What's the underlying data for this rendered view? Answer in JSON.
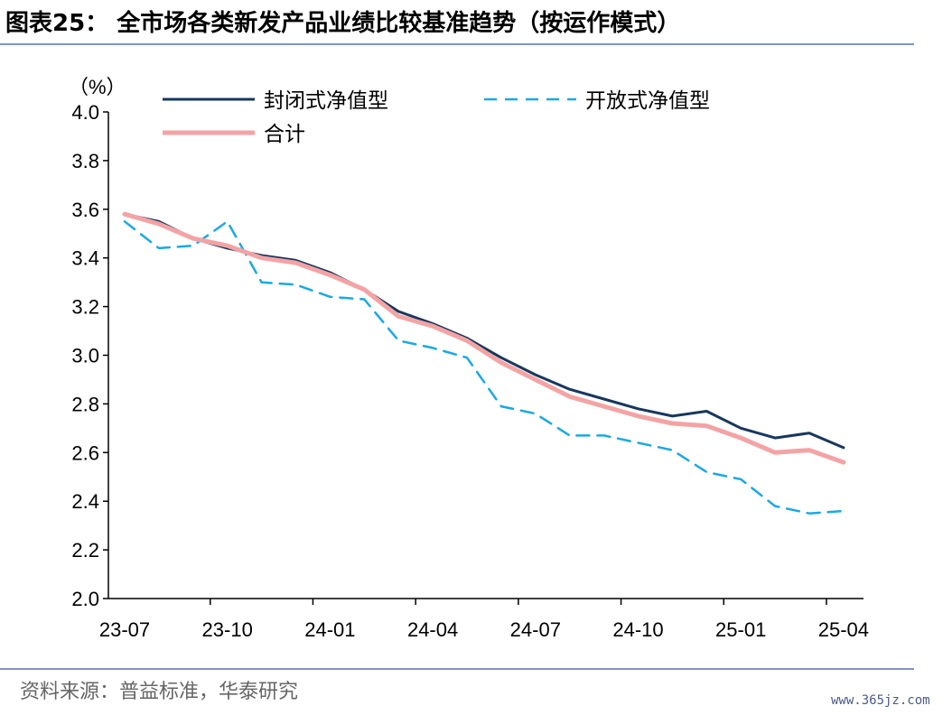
{
  "title": "图表25： 全市场各类新发产品业绩比较基准趋势（按运作模式）",
  "source": "资料来源：普益标准，华泰研究",
  "watermark": "www.365jz.com",
  "colors": {
    "closed": "#17375e",
    "open": "#19a9e6",
    "total": "#f4a3a5",
    "rule": "#7f93c6"
  },
  "chart_data": {
    "type": "line",
    "unit_label": "（%）",
    "ylim": [
      2.0,
      4.0
    ],
    "y_ticks": [
      "2.0",
      "2.2",
      "2.4",
      "2.6",
      "2.8",
      "3.0",
      "3.2",
      "3.4",
      "3.6",
      "3.8",
      "4.0"
    ],
    "x": [
      "23-07",
      "23-08",
      "23-09",
      "23-10",
      "23-11",
      "23-12",
      "24-01",
      "24-02",
      "24-03",
      "24-04",
      "24-05",
      "24-06",
      "24-07",
      "24-08",
      "24-09",
      "24-10",
      "24-11",
      "24-12",
      "25-01",
      "25-02",
      "25-03",
      "25-04"
    ],
    "x_ticks": [
      "23-07",
      "23-10",
      "24-01",
      "24-04",
      "24-07",
      "24-10",
      "25-01",
      "25-04"
    ],
    "legend_position": "top",
    "series": [
      {
        "name": "封闭式净值型",
        "style": "solid",
        "color_key": "closed",
        "values": [
          3.58,
          3.55,
          3.48,
          3.44,
          3.41,
          3.39,
          3.34,
          3.27,
          3.18,
          3.13,
          3.07,
          2.99,
          2.92,
          2.86,
          2.82,
          2.78,
          2.75,
          2.77,
          2.7,
          2.66,
          2.68,
          2.62
        ]
      },
      {
        "name": "开放式净值型",
        "style": "dashed",
        "color_key": "open",
        "values": [
          3.55,
          3.44,
          3.45,
          3.55,
          3.3,
          3.29,
          3.24,
          3.23,
          3.06,
          3.03,
          2.99,
          2.79,
          2.76,
          2.67,
          2.67,
          2.64,
          2.61,
          2.52,
          2.49,
          2.38,
          2.35,
          2.36
        ]
      },
      {
        "name": "合计",
        "style": "solid",
        "color_key": "total",
        "values": [
          3.58,
          3.54,
          3.48,
          3.45,
          3.4,
          3.38,
          3.33,
          3.27,
          3.16,
          3.12,
          3.06,
          2.97,
          2.9,
          2.83,
          2.79,
          2.75,
          2.72,
          2.71,
          2.66,
          2.6,
          2.61,
          2.56
        ]
      }
    ]
  }
}
